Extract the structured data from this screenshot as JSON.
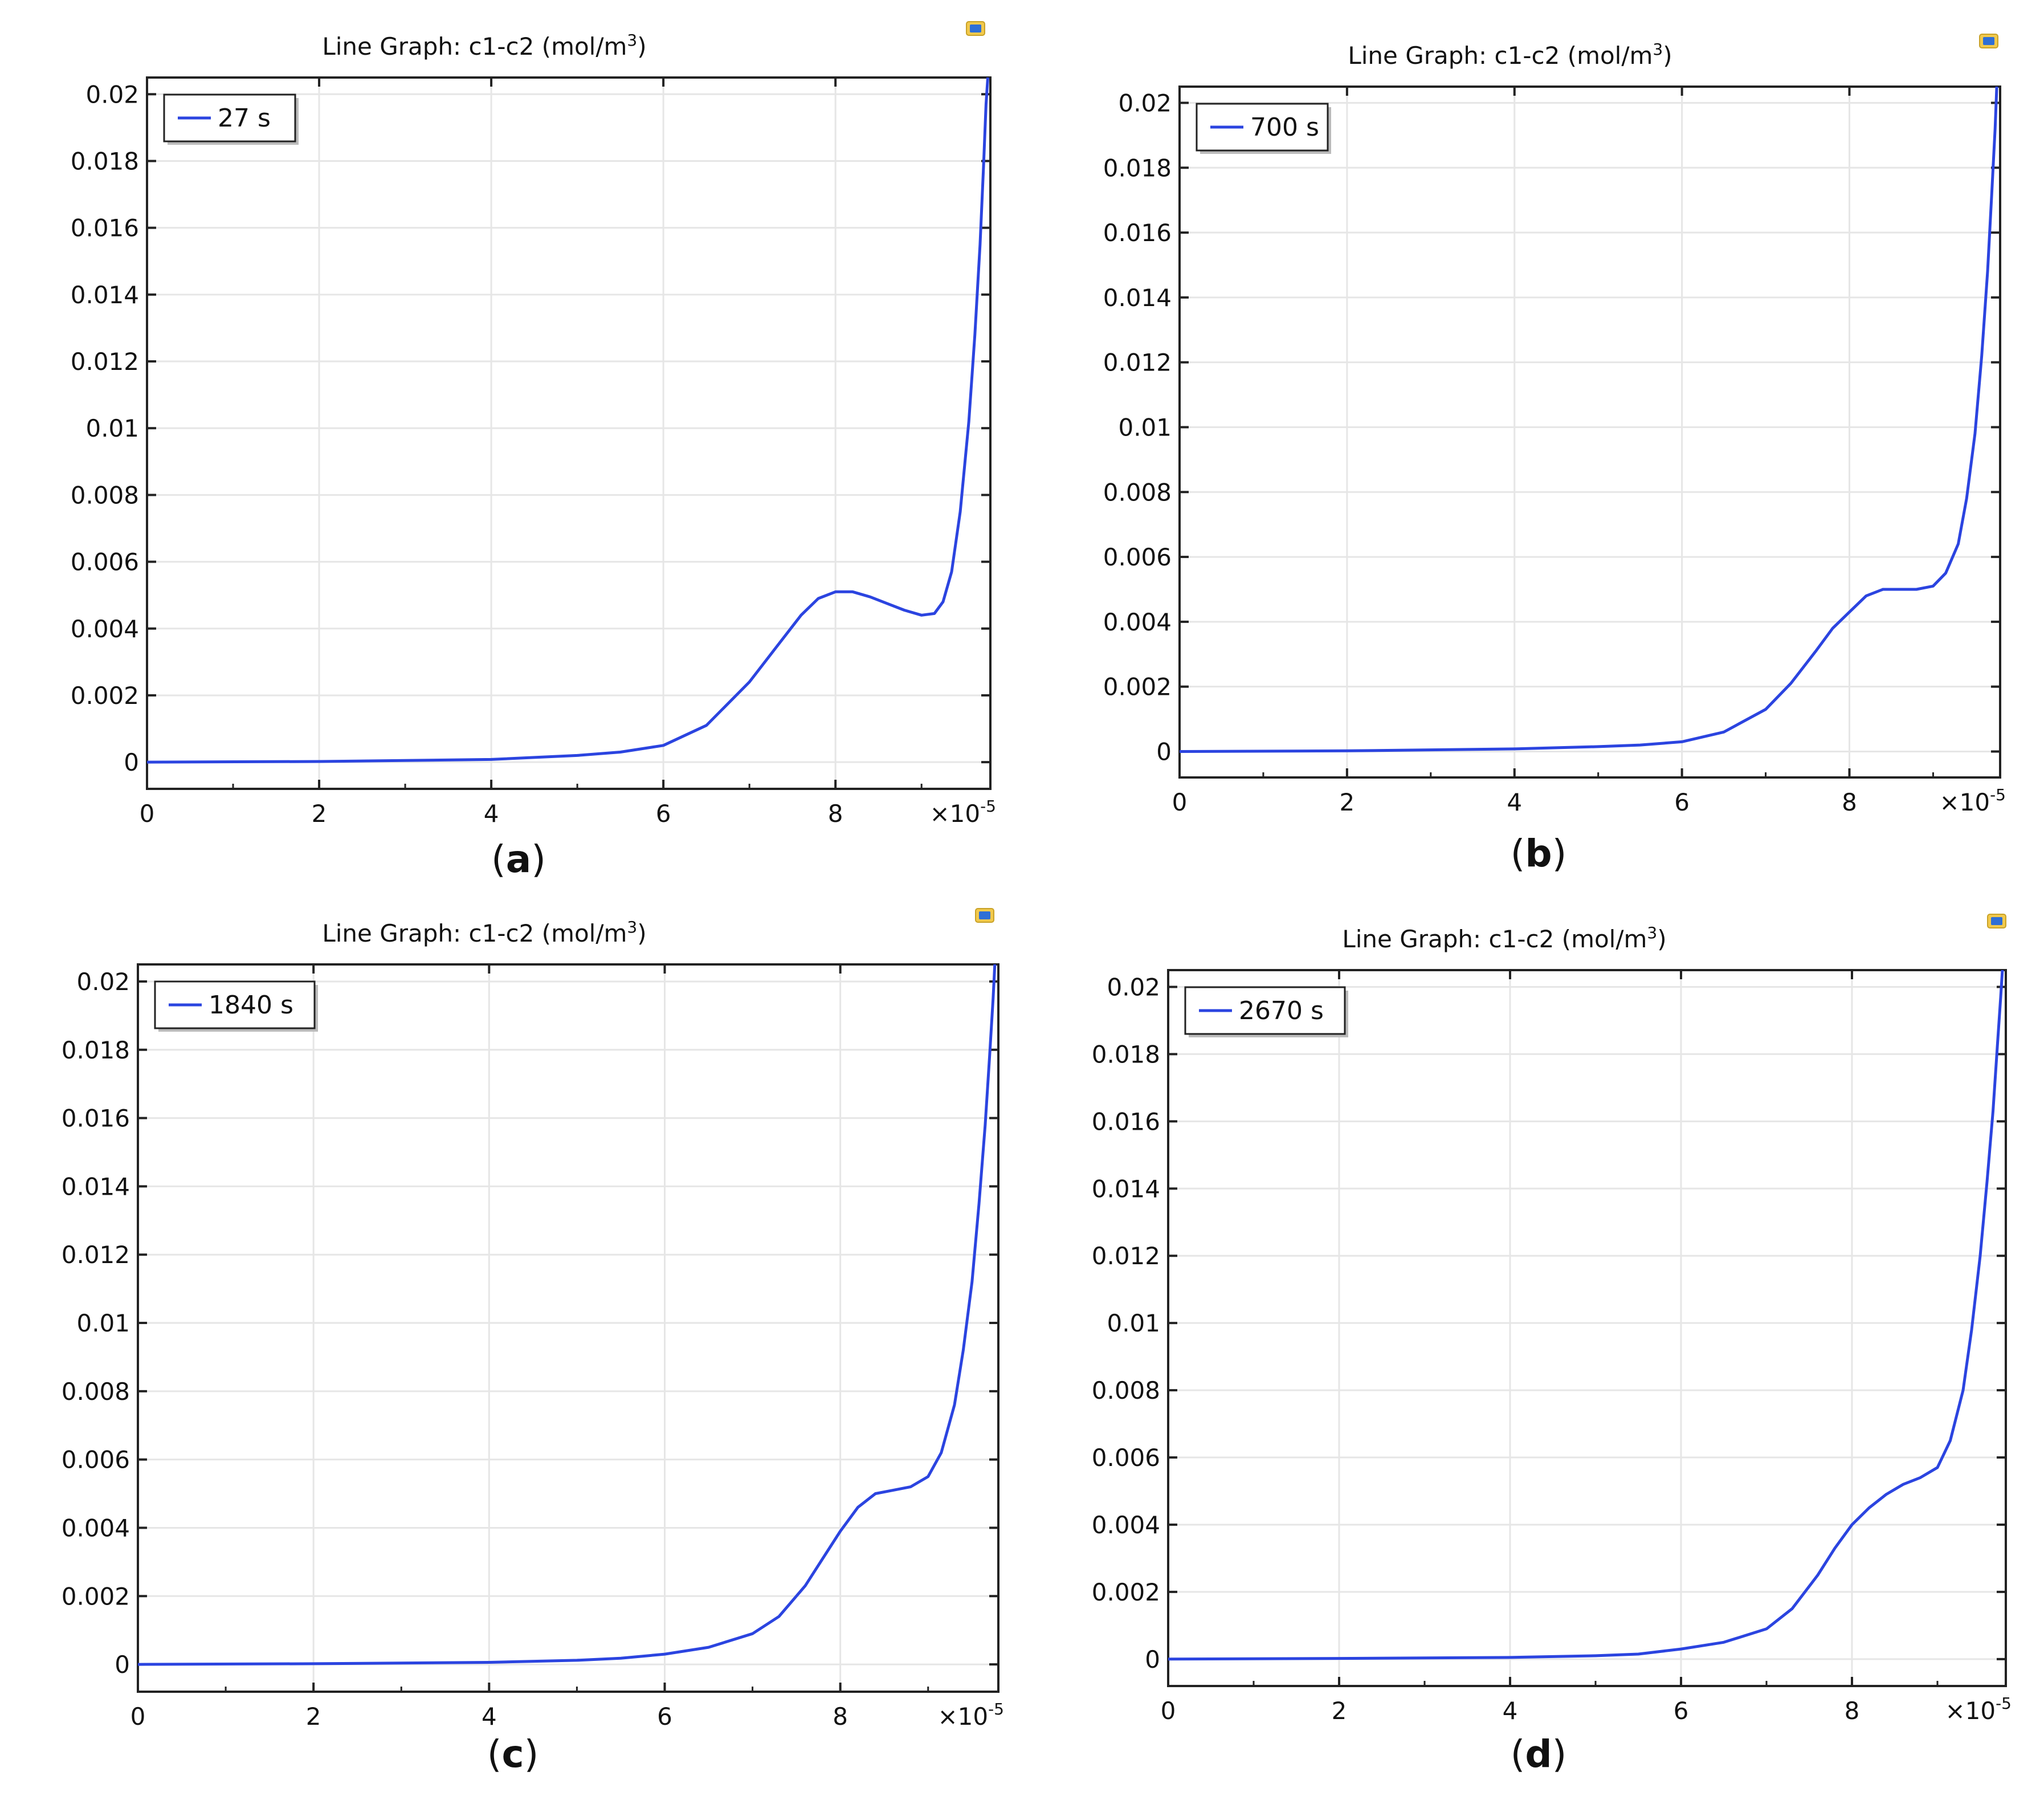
{
  "figure": {
    "colors": {
      "line": "#2b44e0",
      "grid": "#e6e6e6",
      "axis": "#222222",
      "text": "#111111"
    },
    "icon": "comsol-plot-icon"
  },
  "chart_data": [
    {
      "type": "line",
      "panel_label": "a",
      "title": "Line Graph: c1-c2 (mol/m³)",
      "title_parts": {
        "main": "Line Graph: c1-c2 (mol/m",
        "superscript": "3",
        "tail": ")"
      },
      "legend": [
        "27 s"
      ],
      "legend_position": "top-left",
      "xlim": [
        0,
        9.8
      ],
      "ylim": [
        -0.0008,
        0.0205
      ],
      "x_ticks": [
        0,
        2,
        4,
        6,
        8
      ],
      "x_tick_labels": [
        "0",
        "2",
        "4",
        "6",
        "8"
      ],
      "x_multiplier": "×10",
      "x_multiplier_exp": "-5",
      "y_ticks": [
        0,
        0.002,
        0.004,
        0.006,
        0.008,
        0.01,
        0.012,
        0.014,
        0.016,
        0.018,
        0.02
      ],
      "y_tick_labels": [
        "0",
        "0.002",
        "0.004",
        "0.006",
        "0.008",
        "0.01",
        "0.012",
        "0.014",
        "0.016",
        "0.018",
        "0.02"
      ],
      "grid": true,
      "series": [
        {
          "name": "27 s",
          "x": [
            0,
            2,
            4,
            5,
            5.5,
            6,
            6.5,
            7,
            7.3,
            7.6,
            7.8,
            8.0,
            8.2,
            8.4,
            8.6,
            8.8,
            9.0,
            9.15,
            9.25,
            9.35,
            9.45,
            9.55,
            9.62,
            9.68,
            9.72,
            9.75,
            9.77
          ],
          "y": [
            0,
            2e-05,
            8e-05,
            0.0002,
            0.0003,
            0.0005,
            0.0011,
            0.0024,
            0.0034,
            0.0044,
            0.0049,
            0.0051,
            0.0051,
            0.00495,
            0.00475,
            0.00455,
            0.0044,
            0.00445,
            0.0048,
            0.0057,
            0.0075,
            0.0102,
            0.0128,
            0.0155,
            0.0178,
            0.0197,
            0.0205
          ]
        }
      ]
    },
    {
      "type": "line",
      "panel_label": "b",
      "title": "Line Graph: c1-c2 (mol/m³)",
      "title_parts": {
        "main": "Line Graph: c1-c2 (mol/m",
        "superscript": "3",
        "tail": ")"
      },
      "legend": [
        "700 s"
      ],
      "legend_position": "top-left",
      "xlim": [
        0,
        9.8
      ],
      "ylim": [
        -0.0008,
        0.0205
      ],
      "x_ticks": [
        0,
        2,
        4,
        6,
        8
      ],
      "x_tick_labels": [
        "0",
        "2",
        "4",
        "6",
        "8"
      ],
      "x_multiplier": "×10",
      "x_multiplier_exp": "-5",
      "y_ticks": [
        0,
        0.002,
        0.004,
        0.006,
        0.008,
        0.01,
        0.012,
        0.014,
        0.016,
        0.018,
        0.02
      ],
      "y_tick_labels": [
        "0",
        "0.002",
        "0.004",
        "0.006",
        "0.008",
        "0.01",
        "0.012",
        "0.014",
        "0.016",
        "0.018",
        "0.02"
      ],
      "grid": true,
      "series": [
        {
          "name": "700 s",
          "x": [
            0,
            2,
            4,
            5,
            5.5,
            6,
            6.5,
            7,
            7.3,
            7.6,
            7.8,
            8.0,
            8.2,
            8.4,
            8.6,
            8.8,
            9.0,
            9.15,
            9.3,
            9.4,
            9.5,
            9.58,
            9.65,
            9.7,
            9.74,
            9.76
          ],
          "y": [
            0,
            2e-05,
            8e-05,
            0.00015,
            0.0002,
            0.0003,
            0.0006,
            0.0013,
            0.0021,
            0.0031,
            0.0038,
            0.0043,
            0.0048,
            0.005,
            0.005,
            0.005,
            0.0051,
            0.0055,
            0.0064,
            0.0078,
            0.0098,
            0.0122,
            0.0148,
            0.0172,
            0.0192,
            0.0205
          ]
        }
      ]
    },
    {
      "type": "line",
      "panel_label": "c",
      "title": "Line Graph: c1-c2 (mol/m³)",
      "title_parts": {
        "main": "Line Graph: c1-c2 (mol/m",
        "superscript": "3",
        "tail": ")"
      },
      "legend": [
        "1840 s"
      ],
      "legend_position": "top-left",
      "xlim": [
        0,
        9.8
      ],
      "ylim": [
        -0.0008,
        0.0205
      ],
      "x_ticks": [
        0,
        2,
        4,
        6,
        8
      ],
      "x_tick_labels": [
        "0",
        "2",
        "4",
        "6",
        "8"
      ],
      "x_multiplier": "×10",
      "x_multiplier_exp": "-5",
      "y_ticks": [
        0,
        0.002,
        0.004,
        0.006,
        0.008,
        0.01,
        0.012,
        0.014,
        0.016,
        0.018,
        0.02
      ],
      "y_tick_labels": [
        "0",
        "0.002",
        "0.004",
        "0.006",
        "0.008",
        "0.01",
        "0.012",
        "0.014",
        "0.016",
        "0.018",
        "0.02"
      ],
      "grid": true,
      "series": [
        {
          "name": "1840 s",
          "x": [
            0,
            2,
            4,
            5,
            5.5,
            6,
            6.5,
            7,
            7.3,
            7.6,
            7.8,
            8.0,
            8.2,
            8.4,
            8.6,
            8.8,
            9.0,
            9.15,
            9.3,
            9.4,
            9.5,
            9.58,
            9.65,
            9.7,
            9.74,
            9.76
          ],
          "y": [
            0,
            2e-05,
            6e-05,
            0.00012,
            0.00018,
            0.0003,
            0.0005,
            0.0009,
            0.0014,
            0.0023,
            0.0031,
            0.0039,
            0.0046,
            0.005,
            0.0051,
            0.0052,
            0.0055,
            0.0062,
            0.0076,
            0.0092,
            0.0112,
            0.0135,
            0.0158,
            0.0178,
            0.0195,
            0.0205
          ]
        }
      ]
    },
    {
      "type": "line",
      "panel_label": "d",
      "title": "Line Graph: c1-c2 (mol/m³)",
      "title_parts": {
        "main": "Line Graph: c1-c2 (mol/m",
        "superscript": "3",
        "tail": ")"
      },
      "legend": [
        "2670 s"
      ],
      "legend_position": "top-left",
      "xlim": [
        0,
        9.8
      ],
      "ylim": [
        -0.0008,
        0.0205
      ],
      "x_ticks": [
        0,
        2,
        4,
        6,
        8
      ],
      "x_tick_labels": [
        "0",
        "2",
        "4",
        "6",
        "8"
      ],
      "x_multiplier": "×10",
      "x_multiplier_exp": "-5",
      "y_ticks": [
        0,
        0.002,
        0.004,
        0.006,
        0.008,
        0.01,
        0.012,
        0.014,
        0.016,
        0.018,
        0.02
      ],
      "y_tick_labels": [
        "0",
        "0.002",
        "0.004",
        "0.006",
        "0.008",
        "0.01",
        "0.012",
        "0.014",
        "0.016",
        "0.018",
        "0.02"
      ],
      "grid": true,
      "series": [
        {
          "name": "2670 s",
          "x": [
            0,
            2,
            4,
            5,
            5.5,
            6,
            6.5,
            7,
            7.3,
            7.6,
            7.8,
            8.0,
            8.2,
            8.4,
            8.6,
            8.8,
            9.0,
            9.15,
            9.3,
            9.4,
            9.5,
            9.58,
            9.65,
            9.7,
            9.74,
            9.76
          ],
          "y": [
            0,
            2e-05,
            5e-05,
            0.0001,
            0.00015,
            0.0003,
            0.0005,
            0.0009,
            0.0015,
            0.0025,
            0.0033,
            0.004,
            0.0045,
            0.0049,
            0.0052,
            0.0054,
            0.0057,
            0.0065,
            0.008,
            0.0098,
            0.012,
            0.0142,
            0.0163,
            0.0182,
            0.0197,
            0.0205
          ]
        }
      ]
    }
  ]
}
